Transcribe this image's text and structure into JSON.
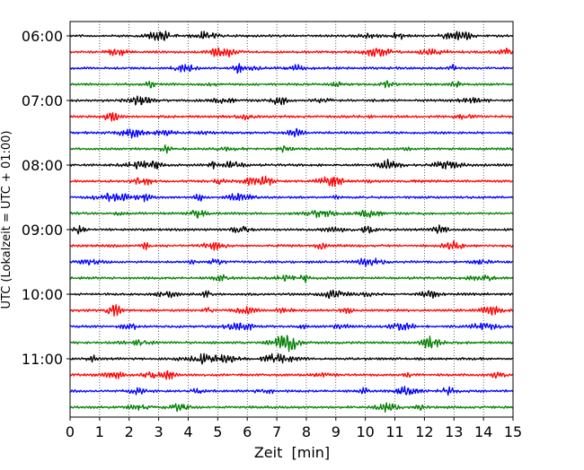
{
  "chart_data": {
    "type": "line",
    "title": "",
    "xlabel": "Zeit  [min]",
    "ylabel": "UTC (Lokalzeit = UTC + 01:00)",
    "xlim": [
      0,
      15
    ],
    "x_ticks": [
      "0",
      "1",
      "2",
      "3",
      "4",
      "5",
      "6",
      "7",
      "8",
      "9",
      "10",
      "11",
      "12",
      "13",
      "14",
      "15"
    ],
    "y_tick_labels": [
      "06:00",
      "07:00",
      "08:00",
      "09:00",
      "10:00",
      "11:00"
    ],
    "y_tick_trace_index": [
      0,
      4,
      8,
      12,
      16,
      20
    ],
    "trace_count": 24,
    "trace_interval_min": 15,
    "trace_colors": [
      "#000000",
      "#ff0000",
      "#0000ff",
      "#008000"
    ],
    "grid": {
      "vertical_dotted": true,
      "horizontal": false
    },
    "legend": "none"
  }
}
